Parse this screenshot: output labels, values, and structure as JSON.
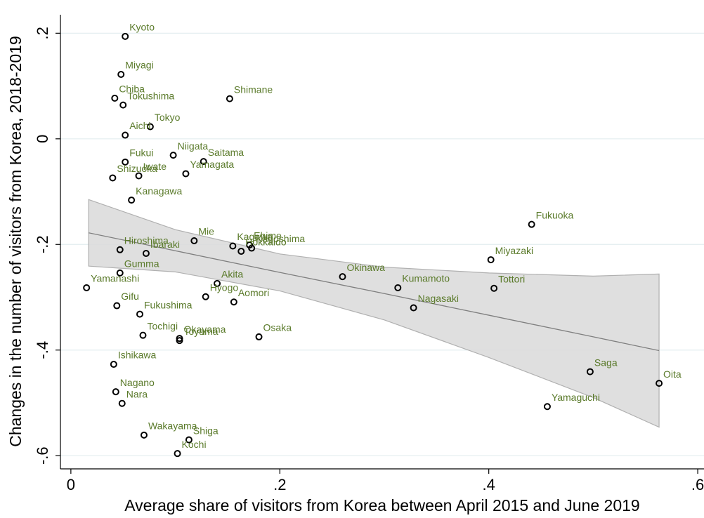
{
  "chart_data": {
    "type": "scatter",
    "x_label": "Average share of visitors from Korea between April 2015 and June 2019",
    "y_label": "Changes in the number of visitors from Korea, 2018-2019",
    "xlim": [
      -0.01,
      0.606
    ],
    "ylim": [
      -0.625,
      0.235
    ],
    "xticks": [
      {
        "value": 0,
        "label": "0"
      },
      {
        "value": 0.2,
        "label": ".2"
      },
      {
        "value": 0.4,
        "label": ".4"
      },
      {
        "value": 0.6,
        "label": ".6"
      }
    ],
    "yticks": [
      {
        "value": -0.6,
        "label": "-.6"
      },
      {
        "value": -0.4,
        "label": "-.4"
      },
      {
        "value": -0.2,
        "label": "-.2"
      },
      {
        "value": 0,
        "label": "0"
      },
      {
        "value": 0.2,
        "label": ".2"
      }
    ],
    "grid": true,
    "marker_color": "#000000",
    "label_color": "#5a7a2a",
    "labels": [
      "Kyoto",
      "Miyagi",
      "Chiba",
      "Tokushima",
      "Shimane",
      "Tokyo",
      "Aichi",
      "Niigata",
      "Saitama",
      "Fukui",
      "Yamagata",
      "Iwate",
      "Shizuoka",
      "Kanagawa",
      "Fukuoka",
      "Mie",
      "Kagawa",
      "Ehime",
      "Kagoshima",
      "Hokkaido",
      "Hiroshima",
      "Ibaraki",
      "Miyazaki",
      "Gumma",
      "Okinawa",
      "Yamanashi",
      "Akita",
      "Kumamoto",
      "Tottori",
      "Hyogo",
      "Aomori",
      "Gifu",
      "Nagasaki",
      "Fukushima",
      "Tochigi",
      "Okayama",
      "Toyama",
      "Osaka",
      "Ishikawa",
      "Saga",
      "Oita",
      "Nagano",
      "Nara",
      "Yamaguchi",
      "Wakayama",
      "Shiga",
      "Kochi"
    ],
    "x": [
      0.052,
      0.048,
      0.042,
      0.05,
      0.152,
      0.076,
      0.052,
      0.098,
      0.127,
      0.052,
      0.11,
      0.065,
      0.04,
      0.058,
      0.441,
      0.118,
      0.155,
      0.171,
      0.173,
      0.163,
      0.047,
      0.072,
      0.402,
      0.047,
      0.26,
      0.015,
      0.14,
      0.313,
      0.405,
      0.129,
      0.156,
      0.044,
      0.328,
      0.066,
      0.069,
      0.104,
      0.104,
      0.18,
      0.041,
      0.497,
      0.563,
      0.043,
      0.049,
      0.456,
      0.07,
      0.113,
      0.102
    ],
    "values": [
      0.194,
      0.122,
      0.077,
      0.064,
      0.076,
      0.023,
      0.007,
      -0.031,
      -0.043,
      -0.044,
      -0.066,
      -0.07,
      -0.074,
      -0.116,
      -0.162,
      -0.193,
      -0.203,
      -0.201,
      -0.207,
      -0.213,
      -0.21,
      -0.217,
      -0.229,
      -0.254,
      -0.261,
      -0.282,
      -0.274,
      -0.282,
      -0.283,
      -0.299,
      -0.309,
      -0.316,
      -0.32,
      -0.332,
      -0.372,
      -0.378,
      -0.382,
      -0.375,
      -0.427,
      -0.441,
      -0.463,
      -0.479,
      -0.501,
      -0.507,
      -0.561,
      -0.57,
      -0.596
    ],
    "fit": {
      "color": "#7f7f7f",
      "band_color": "#d9d9d9",
      "x": [
        0.017,
        0.1,
        0.2,
        0.3,
        0.4,
        0.5,
        0.563
      ],
      "values": [
        -0.178,
        -0.212,
        -0.253,
        -0.293,
        -0.334,
        -0.375,
        -0.401
      ],
      "upper": [
        -0.115,
        -0.172,
        -0.218,
        -0.243,
        -0.254,
        -0.26,
        -0.256
      ],
      "lower": [
        -0.241,
        -0.252,
        -0.288,
        -0.343,
        -0.414,
        -0.49,
        -0.546
      ]
    }
  }
}
